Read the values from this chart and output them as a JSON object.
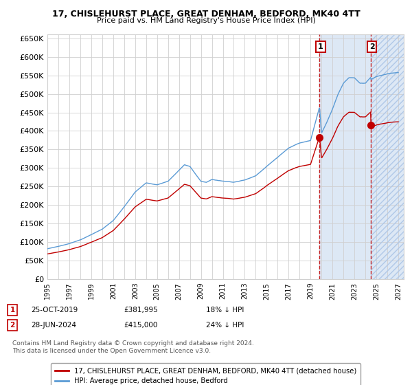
{
  "title1": "17, CHISLEHURST PLACE, GREAT DENHAM, BEDFORD, MK40 4TT",
  "title2": "Price paid vs. HM Land Registry's House Price Index (HPI)",
  "ylim": [
    0,
    660000
  ],
  "yticks": [
    0,
    50000,
    100000,
    150000,
    200000,
    250000,
    300000,
    350000,
    400000,
    450000,
    500000,
    550000,
    600000,
    650000
  ],
  "year_start": 1995,
  "year_end": 2027,
  "transaction1_date": 2019.82,
  "transaction1_price": 381995,
  "transaction2_date": 2024.49,
  "transaction2_price": 415000,
  "legend1": "17, CHISLEHURST PLACE, GREAT DENHAM, BEDFORD, MK40 4TT (detached house)",
  "legend2": "HPI: Average price, detached house, Bedford",
  "label1_date": "25-OCT-2019",
  "label1_price": "£381,995",
  "label1_hpi": "18% ↓ HPI",
  "label2_date": "28-JUN-2024",
  "label2_price": "£415,000",
  "label2_hpi": "24% ↓ HPI",
  "footer1": "Contains HM Land Registry data © Crown copyright and database right 2024.",
  "footer2": "This data is licensed under the Open Government Licence v3.0.",
  "hpi_color": "#5b9bd5",
  "price_color": "#c00000",
  "bg_color": "#ffffff",
  "grid_color": "#d0d0d0",
  "fill_color": "#dde8f5",
  "hatch_color": "#b0c8e8"
}
